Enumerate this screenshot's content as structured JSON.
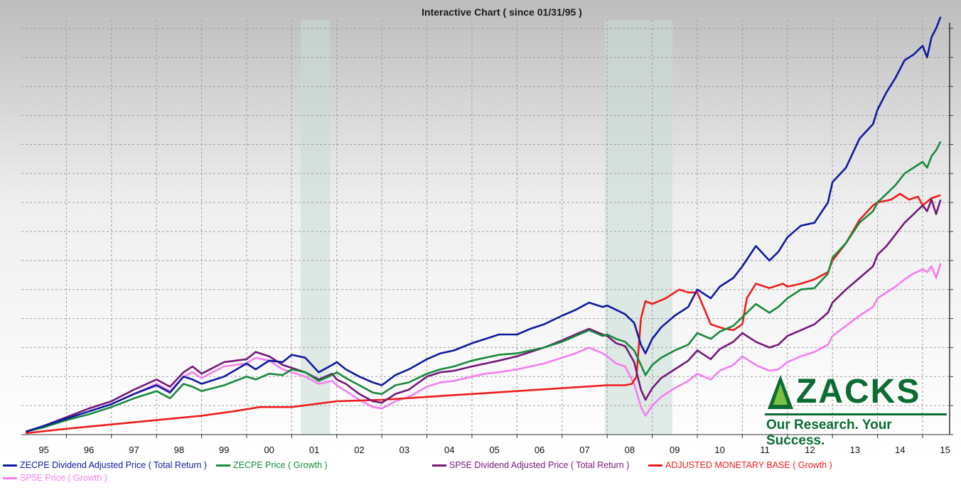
{
  "chart_data": {
    "type": "line",
    "title": "Interactive Chart ( since 01/31/95 )",
    "x_ticks": [
      "95",
      "96",
      "97",
      "98",
      "99",
      "00",
      "01",
      "02",
      "03",
      "04",
      "05",
      "06",
      "07",
      "08",
      "09",
      "10",
      "11",
      "12",
      "13",
      "14",
      "15"
    ],
    "x_range": [
      1995.0,
      2015.6
    ],
    "y_range": [
      0,
      1400
    ],
    "grid": true,
    "legend_placement": "bottom",
    "recessions": [
      [
        2001.2,
        2001.85
      ],
      [
        2007.95,
        2009.45
      ]
    ],
    "series": [
      {
        "name": "ZECPE Dividend Adjusted Price ( Total Return )",
        "color": "#101aa0",
        "x": [
          1995.1,
          1995.5,
          1996,
          1996.5,
          1997,
          1997.5,
          1998,
          1998.3,
          1998.6,
          1998.8,
          1999,
          1999.5,
          2000,
          2000.2,
          2000.5,
          2000.8,
          2001,
          2001.3,
          2001.6,
          2001.9,
          2002,
          2002.2,
          2002.5,
          2002.8,
          2003,
          2003.3,
          2003.6,
          2004,
          2004.3,
          2004.6,
          2005,
          2005.3,
          2005.6,
          2006,
          2006.3,
          2006.6,
          2007,
          2007.3,
          2007.6,
          2007.9,
          2008,
          2008.2,
          2008.4,
          2008.6,
          2008.75,
          2008.85,
          2009,
          2009.2,
          2009.5,
          2009.8,
          2010,
          2010.3,
          2010.5,
          2010.8,
          2011,
          2011.3,
          2011.6,
          2011.8,
          2012,
          2012.3,
          2012.6,
          2012.9,
          2013,
          2013.3,
          2013.6,
          2013.9,
          2014,
          2014.2,
          2014.4,
          2014.6,
          2014.8,
          2015,
          2015.1,
          2015.2,
          2015.3,
          2015.4
        ],
        "values": [
          10,
          30,
          55,
          80,
          105,
          140,
          170,
          145,
          200,
          190,
          175,
          200,
          245,
          225,
          255,
          250,
          275,
          265,
          215,
          240,
          250,
          225,
          200,
          180,
          170,
          205,
          225,
          260,
          280,
          290,
          315,
          330,
          345,
          345,
          365,
          380,
          410,
          430,
          455,
          440,
          445,
          430,
          415,
          385,
          310,
          280,
          330,
          370,
          410,
          440,
          500,
          470,
          510,
          540,
          580,
          650,
          600,
          630,
          680,
          720,
          730,
          800,
          870,
          920,
          1020,
          1070,
          1120,
          1180,
          1230,
          1290,
          1310,
          1340,
          1300,
          1370,
          1400,
          1440
        ]
      },
      {
        "name": "ZECPE Price ( Growth )",
        "color": "#178a3c",
        "x": [
          1995.1,
          1995.5,
          1996,
          1996.5,
          1997,
          1997.5,
          1998,
          1998.3,
          1998.6,
          1998.8,
          1999,
          1999.5,
          2000,
          2000.2,
          2000.5,
          2000.8,
          2001,
          2001.3,
          2001.6,
          2001.9,
          2002,
          2002.2,
          2002.5,
          2002.8,
          2003,
          2003.3,
          2003.6,
          2004,
          2004.3,
          2004.6,
          2005,
          2005.3,
          2005.6,
          2006,
          2006.3,
          2006.6,
          2007,
          2007.3,
          2007.6,
          2007.9,
          2008,
          2008.2,
          2008.4,
          2008.6,
          2008.75,
          2008.85,
          2009,
          2009.2,
          2009.5,
          2009.8,
          2010,
          2010.3,
          2010.5,
          2010.8,
          2011,
          2011.3,
          2011.6,
          2011.8,
          2012,
          2012.3,
          2012.6,
          2012.9,
          2013,
          2013.3,
          2013.6,
          2013.9,
          2014,
          2014.2,
          2014.4,
          2014.6,
          2014.8,
          2015,
          2015.1,
          2015.2,
          2015.3,
          2015.4
        ],
        "values": [
          10,
          25,
          50,
          70,
          95,
          125,
          150,
          125,
          175,
          165,
          150,
          170,
          200,
          190,
          210,
          205,
          225,
          215,
          185,
          205,
          215,
          195,
          170,
          145,
          140,
          170,
          180,
          210,
          225,
          235,
          255,
          265,
          275,
          280,
          290,
          300,
          320,
          340,
          360,
          340,
          345,
          330,
          320,
          290,
          240,
          205,
          240,
          265,
          290,
          310,
          350,
          330,
          355,
          375,
          405,
          450,
          420,
          440,
          470,
          500,
          505,
          555,
          610,
          660,
          730,
          770,
          800,
          830,
          860,
          900,
          920,
          940,
          920,
          960,
          980,
          1010
        ]
      },
      {
        "name": "SP5E Dividend Adjusted Price ( Total Return )",
        "color": "#74197a",
        "x": [
          1995.1,
          1995.5,
          1996,
          1996.5,
          1997,
          1997.5,
          1998,
          1998.3,
          1998.6,
          1998.8,
          1999,
          1999.5,
          2000,
          2000.2,
          2000.5,
          2000.8,
          2001,
          2001.3,
          2001.6,
          2001.9,
          2002,
          2002.2,
          2002.5,
          2002.8,
          2003,
          2003.3,
          2003.6,
          2004,
          2004.3,
          2004.6,
          2005,
          2005.3,
          2005.6,
          2006,
          2006.3,
          2006.6,
          2007,
          2007.3,
          2007.6,
          2007.9,
          2008,
          2008.2,
          2008.4,
          2008.6,
          2008.75,
          2008.85,
          2009,
          2009.2,
          2009.5,
          2009.8,
          2010,
          2010.3,
          2010.5,
          2010.8,
          2011,
          2011.3,
          2011.6,
          2011.8,
          2012,
          2012.3,
          2012.6,
          2012.9,
          2013,
          2013.3,
          2013.6,
          2013.9,
          2014,
          2014.2,
          2014.4,
          2014.6,
          2014.8,
          2015,
          2015.1,
          2015.2,
          2015.3,
          2015.4
        ],
        "values": [
          10,
          30,
          60,
          90,
          115,
          155,
          190,
          165,
          215,
          235,
          210,
          250,
          260,
          285,
          270,
          240,
          230,
          215,
          190,
          210,
          190,
          175,
          140,
          115,
          110,
          140,
          155,
          200,
          215,
          220,
          235,
          245,
          255,
          270,
          285,
          300,
          325,
          345,
          365,
          345,
          340,
          315,
          305,
          250,
          155,
          120,
          160,
          195,
          225,
          255,
          290,
          260,
          295,
          320,
          350,
          320,
          300,
          310,
          340,
          360,
          380,
          420,
          455,
          500,
          540,
          580,
          620,
          650,
          690,
          730,
          760,
          790,
          770,
          810,
          760,
          810
        ]
      },
      {
        "name": "ADJUSTED MONETARY BASE  ( Growth )",
        "color": "#ee1c1c",
        "x": [
          1995.1,
          1996,
          1997,
          1998,
          1999,
          1999.7,
          2000.3,
          2001,
          2002,
          2003,
          2004,
          2005,
          2006,
          2007,
          2008,
          2008.2,
          2008.4,
          2008.55,
          2008.65,
          2008.75,
          2008.85,
          2009,
          2009.3,
          2009.6,
          2009.8,
          2010,
          2010.3,
          2010.6,
          2010.8,
          2011,
          2011.1,
          2011.3,
          2011.6,
          2011.9,
          2012,
          2012.3,
          2012.6,
          2012.9,
          2013,
          2013.3,
          2013.6,
          2013.9,
          2014,
          2014.3,
          2014.5,
          2014.7,
          2014.9,
          2015,
          2015.2,
          2015.4
        ],
        "values": [
          5,
          20,
          35,
          50,
          65,
          80,
          95,
          95,
          115,
          120,
          130,
          140,
          150,
          160,
          170,
          170,
          170,
          175,
          200,
          400,
          460,
          450,
          470,
          500,
          490,
          490,
          380,
          365,
          360,
          380,
          470,
          520,
          505,
          520,
          510,
          520,
          535,
          560,
          600,
          660,
          740,
          790,
          800,
          810,
          830,
          810,
          820,
          790,
          815,
          825
        ]
      },
      {
        "name": "SP5E Price ( Growth )",
        "color": "#f57ef0",
        "x": [
          1995.1,
          1995.5,
          1996,
          1996.5,
          1997,
          1997.5,
          1998,
          1998.3,
          1998.6,
          1998.8,
          1999,
          1999.5,
          2000,
          2000.2,
          2000.5,
          2000.8,
          2001,
          2001.3,
          2001.6,
          2001.9,
          2002,
          2002.2,
          2002.5,
          2002.8,
          2003,
          2003.3,
          2003.6,
          2004,
          2004.3,
          2004.6,
          2005,
          2005.3,
          2005.6,
          2006,
          2006.3,
          2006.6,
          2007,
          2007.3,
          2007.6,
          2007.9,
          2008,
          2008.2,
          2008.4,
          2008.6,
          2008.75,
          2008.85,
          2009,
          2009.2,
          2009.5,
          2009.8,
          2010,
          2010.3,
          2010.5,
          2010.8,
          2011,
          2011.3,
          2011.6,
          2011.8,
          2012,
          2012.3,
          2012.6,
          2012.9,
          2013,
          2013.3,
          2013.6,
          2013.9,
          2014,
          2014.2,
          2014.4,
          2014.6,
          2014.8,
          2015,
          2015.1,
          2015.2,
          2015.3,
          2015.4
        ],
        "values": [
          10,
          28,
          55,
          80,
          105,
          140,
          175,
          150,
          200,
          215,
          195,
          235,
          245,
          265,
          255,
          225,
          215,
          200,
          175,
          185,
          170,
          150,
          120,
          95,
          90,
          115,
          130,
          165,
          180,
          185,
          200,
          210,
          215,
          225,
          235,
          245,
          265,
          280,
          300,
          280,
          270,
          245,
          235,
          175,
          95,
          65,
          100,
          130,
          160,
          185,
          210,
          190,
          220,
          240,
          270,
          240,
          220,
          225,
          250,
          270,
          285,
          310,
          340,
          375,
          410,
          440,
          470,
          490,
          510,
          535,
          555,
          570,
          560,
          580,
          540,
          590
        ]
      }
    ]
  },
  "legend": [
    {
      "label": "ZECPE Dividend Adjusted Price ( Total Return )",
      "color": "#101aa0"
    },
    {
      "label": "ZECPE Price ( Growth )",
      "color": "#178a3c"
    },
    {
      "label": "SP5E Dividend Adjusted Price ( Total Return )",
      "color": "#74197a"
    },
    {
      "label": "ADJUSTED MONETARY BASE  ( Growth )",
      "color": "#ee1c1c"
    },
    {
      "label": "SP5E Price ( Growth )",
      "color": "#f57ef0"
    }
  ],
  "logo": {
    "word": "ZACKS",
    "tagline": "Our Research. Your Success.",
    "color": "#0d6b34"
  }
}
